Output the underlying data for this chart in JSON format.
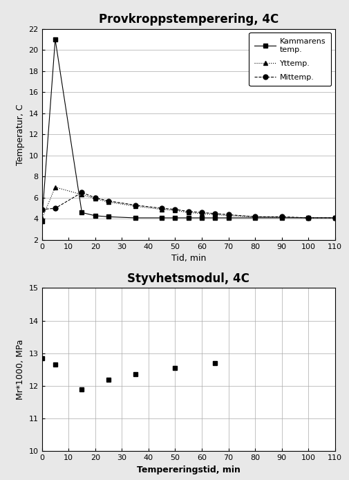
{
  "chart1": {
    "title": "Provkroppstemperering, 4C",
    "xlabel": "Tid, min",
    "ylabel": "Temperatur, C",
    "ylim": [
      2,
      22
    ],
    "xlim": [
      0,
      110
    ],
    "yticks": [
      2,
      4,
      6,
      8,
      10,
      12,
      14,
      16,
      18,
      20,
      22
    ],
    "xticks": [
      0,
      10,
      20,
      30,
      40,
      50,
      60,
      70,
      80,
      90,
      100,
      110
    ],
    "kammarens_x": [
      0,
      5,
      15,
      20,
      25,
      35,
      45,
      50,
      55,
      60,
      65,
      70,
      80,
      90,
      100,
      110
    ],
    "kammarens_y": [
      3.8,
      21.0,
      4.6,
      4.3,
      4.2,
      4.1,
      4.1,
      4.1,
      4.1,
      4.1,
      4.1,
      4.1,
      4.1,
      4.1,
      4.1,
      4.1
    ],
    "yttemp_x": [
      0,
      5,
      15,
      20,
      25,
      35,
      45,
      50,
      55,
      60,
      65,
      70,
      80,
      90,
      100,
      110
    ],
    "yttemp_y": [
      4.0,
      7.0,
      6.3,
      5.9,
      5.6,
      5.2,
      4.9,
      4.8,
      4.6,
      4.5,
      4.4,
      4.3,
      4.2,
      4.15,
      4.1,
      4.1
    ],
    "mittemp_x": [
      0,
      5,
      15,
      20,
      25,
      35,
      45,
      50,
      55,
      60,
      65,
      70,
      80,
      90,
      100,
      110
    ],
    "mittemp_y": [
      4.9,
      5.0,
      6.5,
      6.0,
      5.7,
      5.3,
      5.0,
      4.9,
      4.7,
      4.6,
      4.5,
      4.4,
      4.2,
      4.2,
      4.1,
      4.1
    ]
  },
  "chart2": {
    "title": "Styvhetsmodul, 4C",
    "xlabel": "Tempereringstid, min",
    "ylabel": "Mr*1000, MPa",
    "ylim": [
      10,
      15
    ],
    "xlim": [
      0,
      110
    ],
    "yticks": [
      10,
      11,
      12,
      13,
      14,
      15
    ],
    "xticks": [
      0,
      10,
      20,
      30,
      40,
      50,
      60,
      70,
      80,
      90,
      100,
      110
    ],
    "x": [
      0,
      5,
      15,
      25,
      35,
      50,
      65
    ],
    "y": [
      12.85,
      12.65,
      11.9,
      12.2,
      12.35,
      12.55,
      12.7
    ]
  },
  "fig_bg": "#e8e8e8",
  "plot_bg": "#ffffff",
  "box_bg": "#e8e8e8",
  "grid_color": "#aaaaaa",
  "title1_fontsize": 12,
  "title2_fontsize": 12,
  "tick_fontsize": 8,
  "label_fontsize": 9,
  "legend_fontsize": 8
}
